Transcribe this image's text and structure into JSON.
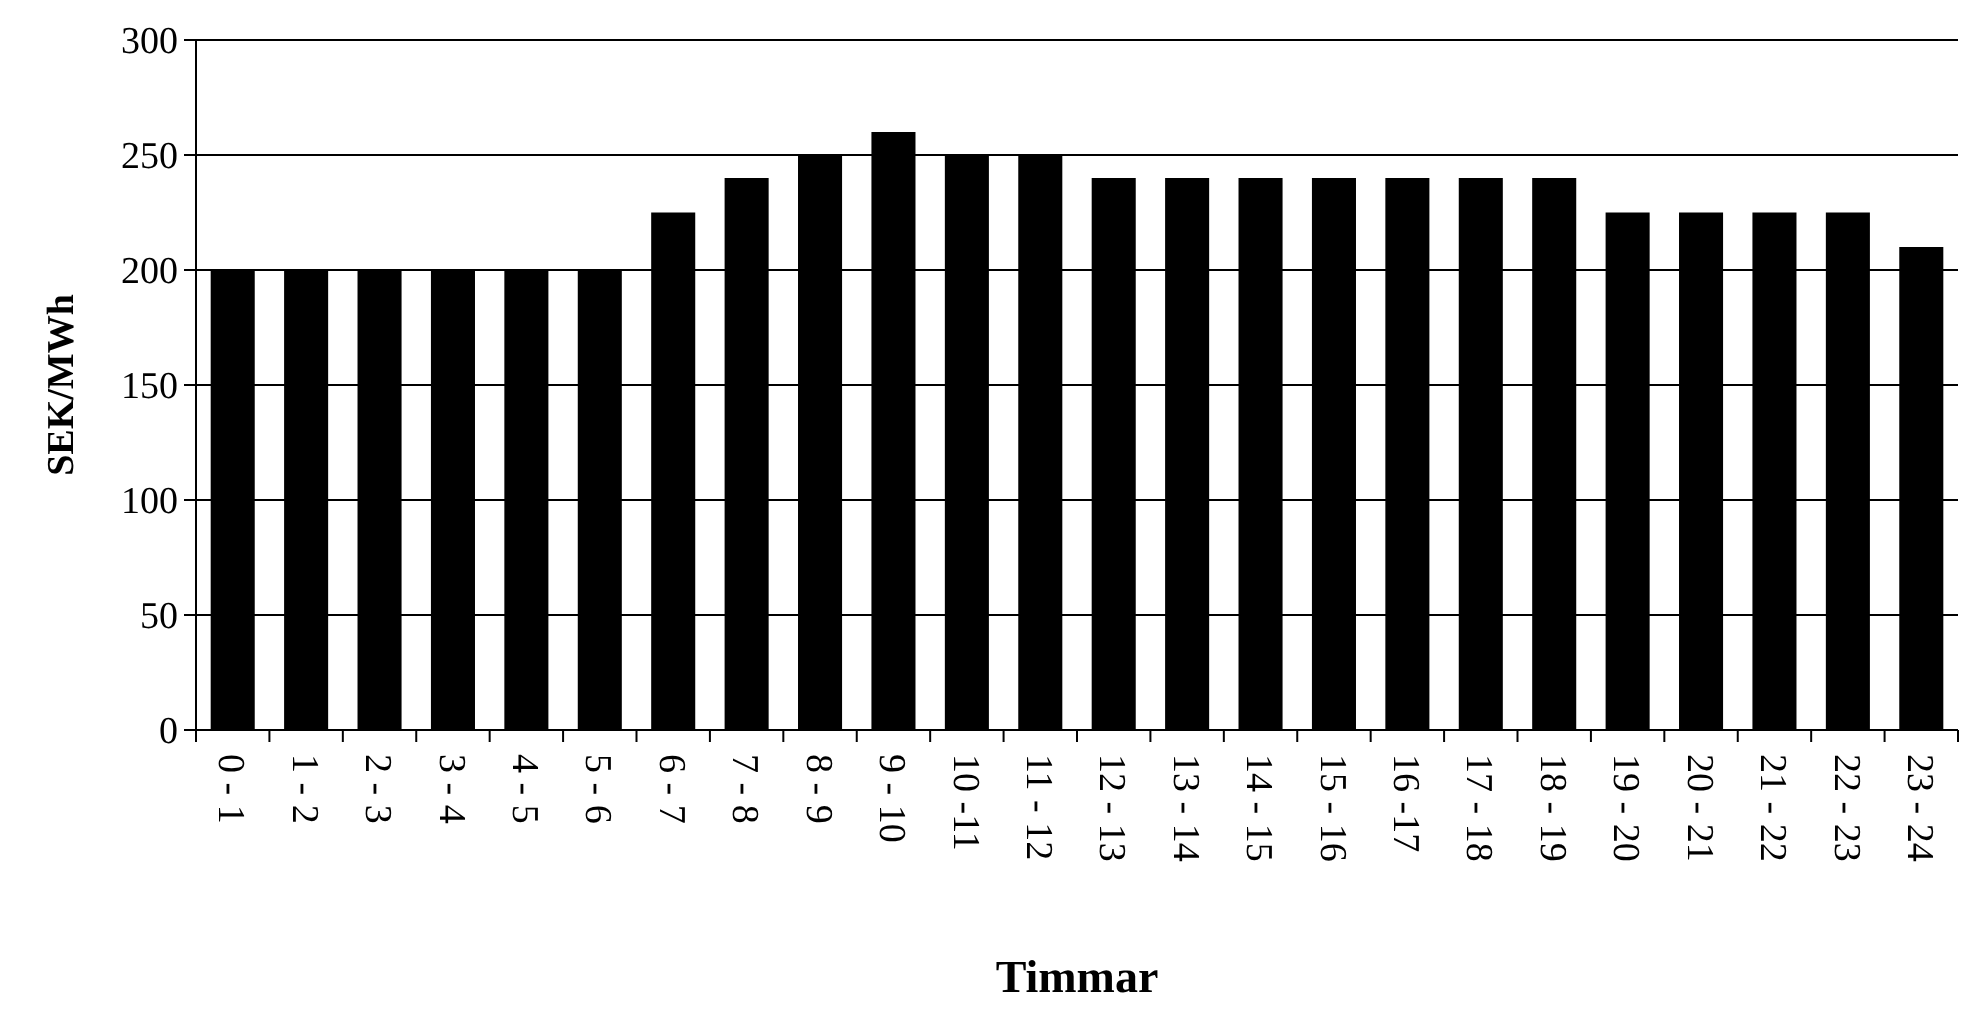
{
  "chart_data": {
    "type": "bar",
    "xlabel": "Timmar",
    "ylabel": "SEK/MWh",
    "categories": [
      "0 - 1",
      "1 - 2",
      "2 - 3",
      "3 - 4",
      "4 - 5",
      "5 - 6",
      "6 - 7",
      "7 - 8",
      "8 - 9",
      "9 - 10",
      "10 -11",
      "11 - 12",
      "12 - 13",
      "13 - 14",
      "14 - 15",
      "15 - 16",
      "16 -17",
      "17 - 18",
      "18 - 19",
      "19 - 20",
      "20 - 21",
      "21 - 22",
      "22 - 23",
      "23 - 24"
    ],
    "values": [
      200,
      200,
      200,
      200,
      200,
      200,
      225,
      240,
      250,
      260,
      250,
      250,
      240,
      240,
      240,
      240,
      240,
      240,
      240,
      225,
      225,
      225,
      225,
      210
    ],
    "color": "#000000",
    "ylim": [
      0,
      300
    ],
    "yticks": [
      0,
      50,
      100,
      150,
      200,
      250,
      300
    ],
    "grid": "y"
  }
}
